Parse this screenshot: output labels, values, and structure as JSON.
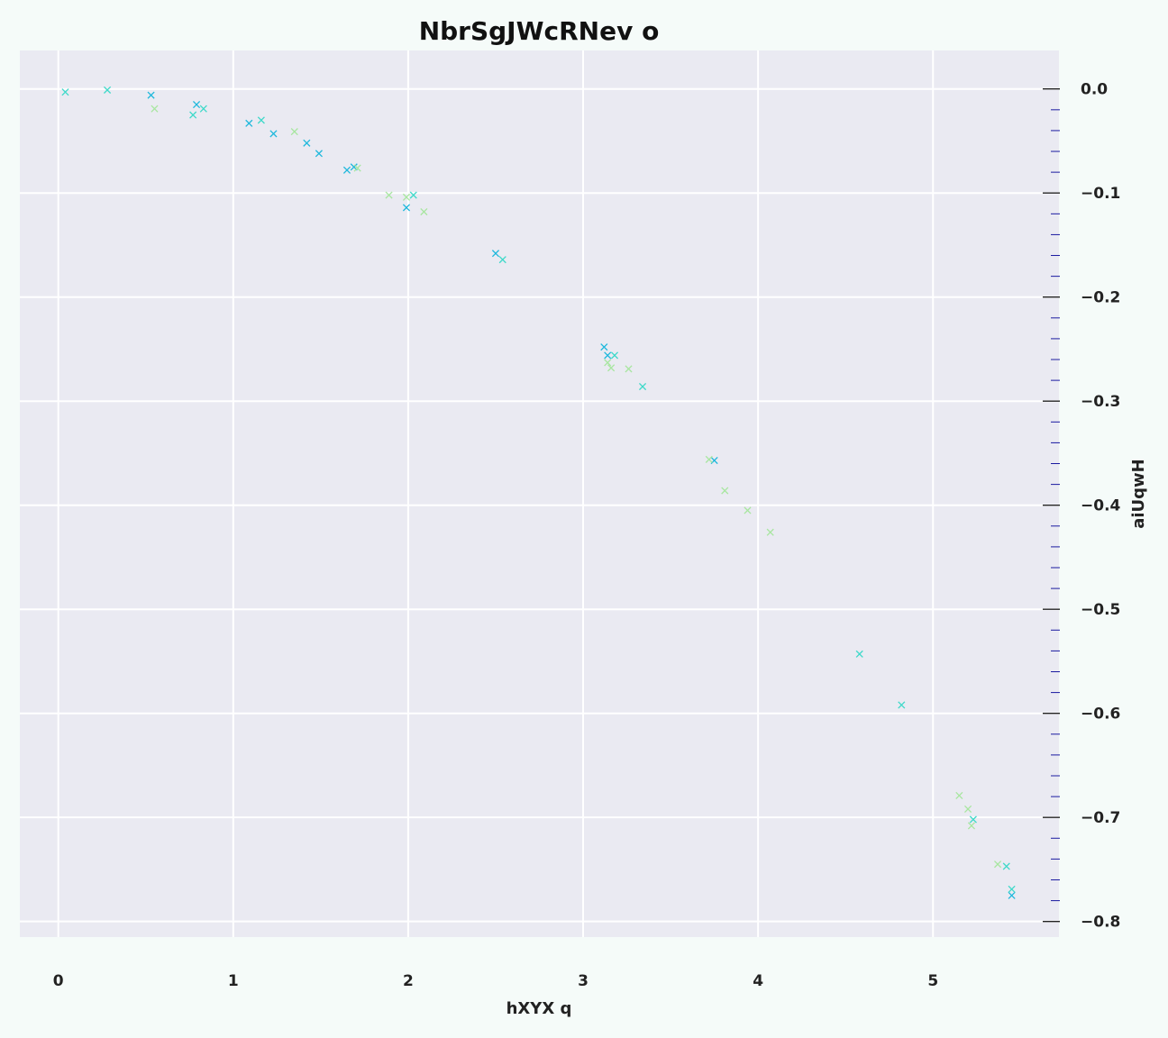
{
  "chart_data": {
    "type": "scatter",
    "title": "NbrSgJWcRNev o",
    "xlabel": "hXYX q",
    "ylabel": "aiUqwH",
    "xlim": [
      -0.22,
      5.72
    ],
    "ylim": [
      -0.815,
      0.037
    ],
    "x_ticks": [
      0,
      1,
      2,
      3,
      4,
      5
    ],
    "x_tick_labels": [
      "0",
      "1",
      "2",
      "3",
      "4",
      "5"
    ],
    "y_ticks": [
      0.0,
      -0.1,
      -0.2,
      -0.3,
      -0.4,
      -0.5,
      -0.6,
      -0.7,
      -0.8
    ],
    "y_tick_labels": [
      "0.0",
      "−0.1",
      "−0.2",
      "−0.3",
      "−0.4",
      "−0.5",
      "−0.6",
      "−0.7",
      "−0.8"
    ],
    "y_axis_side": "right",
    "y_minor_tick_step": 0.02,
    "grid": true,
    "marker": "x",
    "background_color": "#eaeaf2",
    "series": [
      {
        "color": "#1fb8dc",
        "points": [
          [
            0.53,
            -0.006
          ],
          [
            0.79,
            -0.015
          ],
          [
            1.09,
            -0.033
          ],
          [
            1.23,
            -0.043
          ],
          [
            1.42,
            -0.052
          ],
          [
            1.49,
            -0.062
          ],
          [
            1.65,
            -0.078
          ],
          [
            1.69,
            -0.075
          ],
          [
            1.99,
            -0.114
          ],
          [
            2.5,
            -0.158
          ],
          [
            3.12,
            -0.248
          ],
          [
            3.14,
            -0.256
          ],
          [
            3.75,
            -0.357
          ],
          [
            5.45,
            -0.775
          ]
        ]
      },
      {
        "color": "#3ed9c9",
        "points": [
          [
            0.04,
            -0.003
          ],
          [
            0.28,
            -0.001
          ],
          [
            0.77,
            -0.025
          ],
          [
            0.83,
            -0.019
          ],
          [
            1.16,
            -0.03
          ],
          [
            2.03,
            -0.102
          ],
          [
            2.54,
            -0.164
          ],
          [
            3.18,
            -0.256
          ],
          [
            3.34,
            -0.286
          ],
          [
            4.58,
            -0.543
          ],
          [
            4.82,
            -0.592
          ],
          [
            5.23,
            -0.702
          ],
          [
            5.42,
            -0.747
          ],
          [
            5.45,
            -0.769
          ]
        ]
      },
      {
        "color": "#a8e6a0",
        "points": [
          [
            0.55,
            -0.019
          ],
          [
            1.35,
            -0.041
          ],
          [
            1.71,
            -0.076
          ],
          [
            1.89,
            -0.102
          ],
          [
            1.99,
            -0.104
          ],
          [
            2.09,
            -0.118
          ],
          [
            3.14,
            -0.263
          ],
          [
            3.16,
            -0.268
          ],
          [
            3.26,
            -0.269
          ],
          [
            3.72,
            -0.356
          ],
          [
            3.81,
            -0.386
          ],
          [
            3.94,
            -0.405
          ],
          [
            4.07,
            -0.426
          ],
          [
            5.15,
            -0.679
          ],
          [
            5.2,
            -0.692
          ],
          [
            5.22,
            -0.708
          ],
          [
            5.37,
            -0.745
          ]
        ]
      }
    ]
  }
}
